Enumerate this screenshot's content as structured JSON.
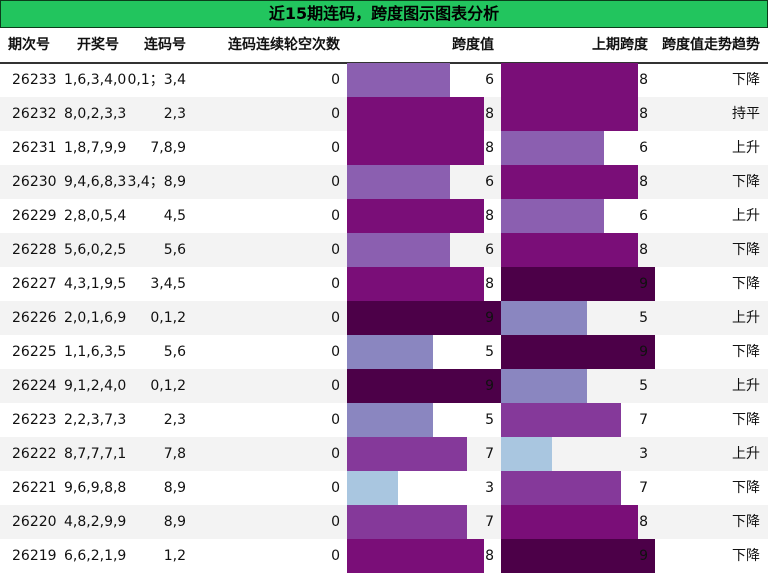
{
  "title": "近15期连码，跨度图示图表分析",
  "headers": {
    "issue": "期次号",
    "draw": "开奖号",
    "consecutive": "连码号",
    "misses": "连码连续轮空次数",
    "span": "跨度值",
    "prev_span": "上期跨度",
    "trend": "跨度值走势趋势"
  },
  "colors": {
    "header_bg": "#22c55e",
    "span_3": "#a9c6e0",
    "span_5": "#8a86c0",
    "span_6": "#8b5fb0",
    "span_7": "#85399a",
    "span_8": "#7a0e78",
    "span_9": "#4c0048"
  },
  "chart_data": {
    "type": "table",
    "max_span": 9,
    "rows": [
      {
        "issue": "26233",
        "draw": "1,6,3,4,0",
        "consecutive": "0,1；3,4",
        "misses": "0",
        "span": 6,
        "prev_span": 8,
        "trend": "下降"
      },
      {
        "issue": "26232",
        "draw": "8,0,2,3,3",
        "consecutive": "2,3",
        "misses": "0",
        "span": 8,
        "prev_span": 8,
        "trend": "持平"
      },
      {
        "issue": "26231",
        "draw": "1,8,7,9,9",
        "consecutive": "7,8,9",
        "misses": "0",
        "span": 8,
        "prev_span": 6,
        "trend": "上升"
      },
      {
        "issue": "26230",
        "draw": "9,4,6,8,3",
        "consecutive": "3,4；8,9",
        "misses": "0",
        "span": 6,
        "prev_span": 8,
        "trend": "下降"
      },
      {
        "issue": "26229",
        "draw": "2,8,0,5,4",
        "consecutive": "4,5",
        "misses": "0",
        "span": 8,
        "prev_span": 6,
        "trend": "上升"
      },
      {
        "issue": "26228",
        "draw": "5,6,0,2,5",
        "consecutive": "5,6",
        "misses": "0",
        "span": 6,
        "prev_span": 8,
        "trend": "下降"
      },
      {
        "issue": "26227",
        "draw": "4,3,1,9,5",
        "consecutive": "3,4,5",
        "misses": "0",
        "span": 8,
        "prev_span": 9,
        "trend": "下降"
      },
      {
        "issue": "26226",
        "draw": "2,0,1,6,9",
        "consecutive": "0,1,2",
        "misses": "0",
        "span": 9,
        "prev_span": 5,
        "trend": "上升"
      },
      {
        "issue": "26225",
        "draw": "1,1,6,3,5",
        "consecutive": "5,6",
        "misses": "0",
        "span": 5,
        "prev_span": 9,
        "trend": "下降"
      },
      {
        "issue": "26224",
        "draw": "9,1,2,4,0",
        "consecutive": "0,1,2",
        "misses": "0",
        "span": 9,
        "prev_span": 5,
        "trend": "上升"
      },
      {
        "issue": "26223",
        "draw": "2,2,3,7,3",
        "consecutive": "2,3",
        "misses": "0",
        "span": 5,
        "prev_span": 7,
        "trend": "下降"
      },
      {
        "issue": "26222",
        "draw": "8,7,7,7,1",
        "consecutive": "7,8",
        "misses": "0",
        "span": 7,
        "prev_span": 3,
        "trend": "上升"
      },
      {
        "issue": "26221",
        "draw": "9,6,9,8,8",
        "consecutive": "8,9",
        "misses": "0",
        "span": 3,
        "prev_span": 7,
        "trend": "下降"
      },
      {
        "issue": "26220",
        "draw": "4,8,2,9,9",
        "consecutive": "8,9",
        "misses": "0",
        "span": 7,
        "prev_span": 8,
        "trend": "下降"
      },
      {
        "issue": "26219",
        "draw": "6,6,2,1,9",
        "consecutive": "1,2",
        "misses": "0",
        "span": 8,
        "prev_span": 9,
        "trend": "下降"
      }
    ]
  }
}
